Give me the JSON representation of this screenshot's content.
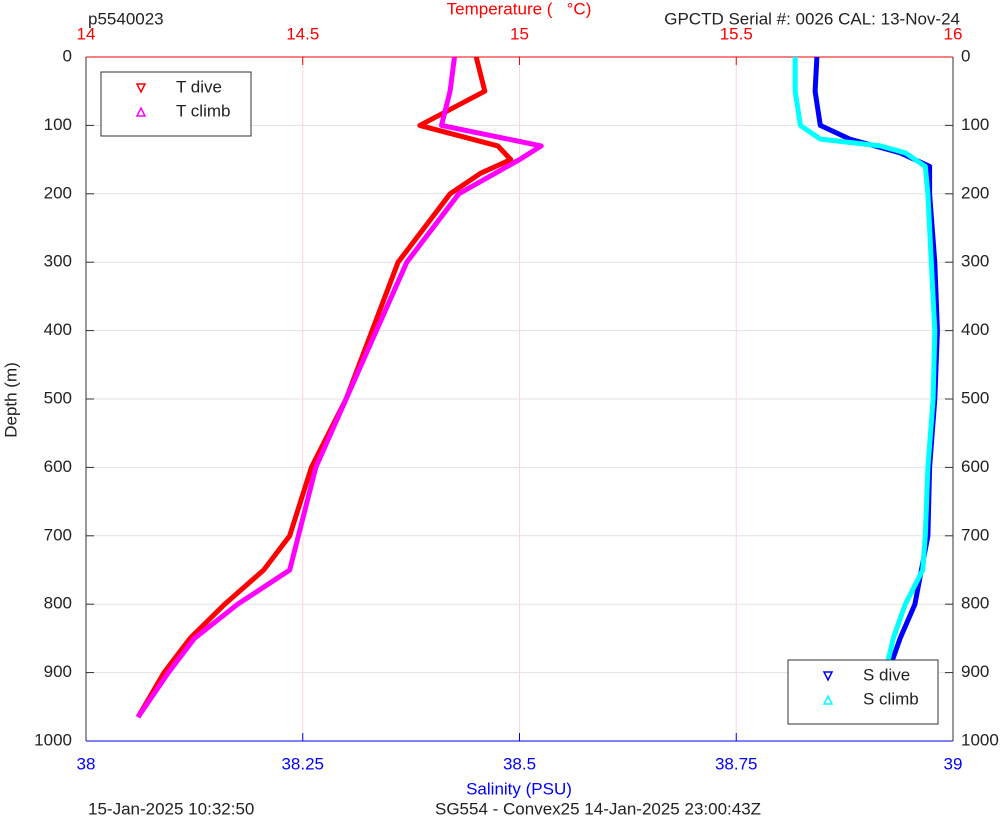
{
  "chart_data": {
    "type": "line",
    "title": "p5540023",
    "subtitle": "GPCTD Serial #: 0026 CAL: 13-Nov-24",
    "ylabel": "Depth (m)",
    "xlabel": "Salinity (PSU)",
    "x2label": "Temperature (   °C)",
    "footer_left": "15-Jan-2025 10:32:50",
    "footer_right": "SG554 - Convex25 14-Jan-2025 23:00:43Z",
    "ylim": [
      0,
      1000
    ],
    "y_reversed": true,
    "yticks": [
      0,
      100,
      200,
      300,
      400,
      500,
      600,
      700,
      800,
      900,
      1000
    ],
    "xlim": [
      38,
      39
    ],
    "xticks": [
      38,
      38.25,
      38.5,
      38.75,
      39
    ],
    "x2lim": [
      14,
      16
    ],
    "x2ticks": [
      14,
      14.5,
      15,
      15.5,
      16
    ],
    "xcolor": "#0000ff",
    "x2color": "#ff0000",
    "grid": true,
    "legends": [
      {
        "axis": "x2",
        "loc": "top-left"
      },
      {
        "axis": "x",
        "loc": "bottom-right"
      }
    ],
    "series": [
      {
        "name": "T dive",
        "color": "#ff0000",
        "axis": "x2",
        "marker": "down",
        "x": [
          14.9,
          14.92,
          14.77,
          14.95,
          14.98,
          14.91,
          14.84,
          14.78,
          14.72,
          14.66,
          14.6,
          14.52,
          14.47,
          14.41,
          14.32,
          14.24,
          14.18,
          14.12
        ],
        "y": [
          0,
          50,
          100,
          130,
          150,
          170,
          200,
          250,
          300,
          400,
          500,
          600,
          700,
          750,
          800,
          850,
          900,
          965
        ]
      },
      {
        "name": "T climb",
        "color": "#ff00ff",
        "axis": "x2",
        "marker": "up",
        "x": [
          14.85,
          14.84,
          14.82,
          15.05,
          15.0,
          14.86,
          14.74,
          14.67,
          14.6,
          14.53,
          14.49,
          14.47,
          14.35,
          14.25,
          14.19,
          14.12
        ],
        "y": [
          0,
          50,
          100,
          130,
          150,
          200,
          300,
          400,
          500,
          600,
          700,
          750,
          800,
          850,
          900,
          965
        ]
      },
      {
        "name": "S dive",
        "color": "#0000ff",
        "axis": "x",
        "marker": "down",
        "x": [
          38.843,
          38.841,
          38.847,
          38.881,
          38.939,
          38.973,
          38.973,
          38.979,
          38.982,
          38.979,
          38.973,
          38.971,
          38.956,
          38.939,
          38.925,
          38.913
        ],
        "y": [
          0,
          50,
          100,
          120,
          140,
          160,
          200,
          300,
          400,
          500,
          600,
          700,
          800,
          850,
          900,
          965
        ]
      },
      {
        "name": "S climb",
        "color": "#00ffff",
        "axis": "x",
        "marker": "up",
        "x": [
          38.818,
          38.818,
          38.824,
          38.847,
          38.916,
          38.945,
          38.968,
          38.971,
          38.975,
          38.979,
          38.977,
          38.971,
          38.968,
          38.965,
          38.945,
          38.931,
          38.922,
          38.912
        ],
        "y": [
          0,
          50,
          100,
          120,
          130,
          140,
          160,
          200,
          300,
          400,
          500,
          600,
          700,
          750,
          800,
          850,
          900,
          965
        ]
      }
    ]
  }
}
